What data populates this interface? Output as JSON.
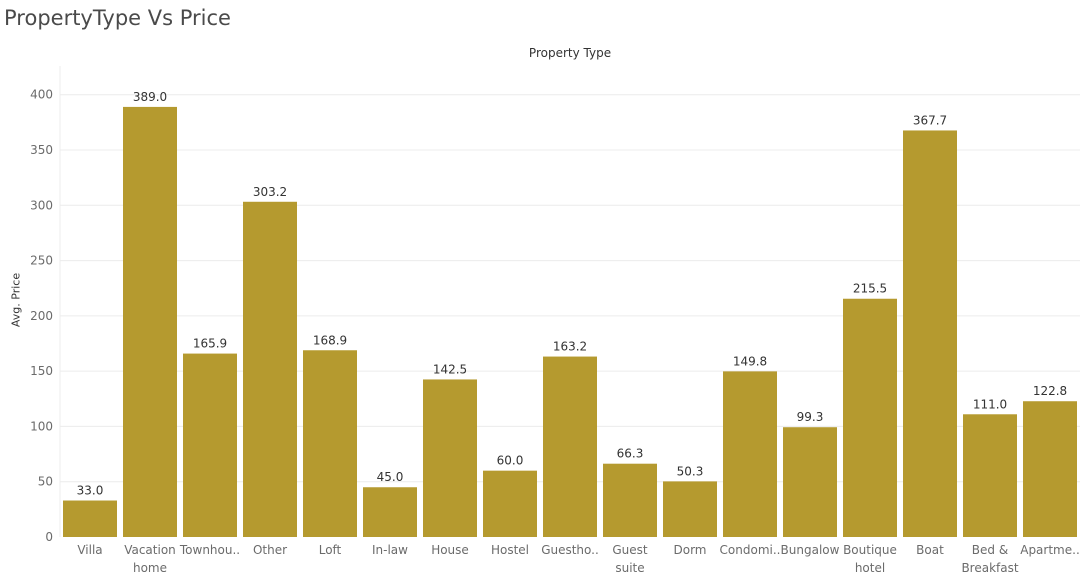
{
  "page": {
    "title": "PropertyType Vs Price"
  },
  "chart_data": {
    "type": "bar",
    "title": "PropertyType Vs Price",
    "xlabel": "Property Type",
    "ylabel": "Avg. Price",
    "categories": [
      [
        "Villa"
      ],
      [
        "Vacation",
        "home"
      ],
      [
        "Townhou.."
      ],
      [
        "Other"
      ],
      [
        "Loft"
      ],
      [
        "In-law"
      ],
      [
        "House"
      ],
      [
        "Hostel"
      ],
      [
        "Guestho.."
      ],
      [
        "Guest",
        "suite"
      ],
      [
        "Dorm"
      ],
      [
        "Condomi.."
      ],
      [
        "Bungalow"
      ],
      [
        "Boutique",
        "hotel"
      ],
      [
        "Boat"
      ],
      [
        "Bed &",
        "Breakfast"
      ],
      [
        "Apartme.."
      ]
    ],
    "values": [
      33.0,
      389.0,
      165.9,
      303.2,
      168.9,
      45.0,
      142.5,
      60.0,
      163.2,
      66.3,
      50.3,
      149.8,
      99.3,
      215.5,
      367.7,
      111.0,
      122.8
    ],
    "value_labels": [
      "33.0",
      "389.0",
      "165.9",
      "303.2",
      "168.9",
      "45.0",
      "142.5",
      "60.0",
      "163.2",
      "66.3",
      "50.3",
      "149.8",
      "99.3",
      "215.5",
      "367.7",
      "111.0",
      "122.8"
    ],
    "yticks": [
      0,
      50,
      100,
      150,
      200,
      250,
      300,
      350,
      400
    ],
    "ylim": [
      0,
      426
    ],
    "grid": true,
    "bar_color": "#b59a2f",
    "gridline_color": "#ececec",
    "legend": "none"
  }
}
